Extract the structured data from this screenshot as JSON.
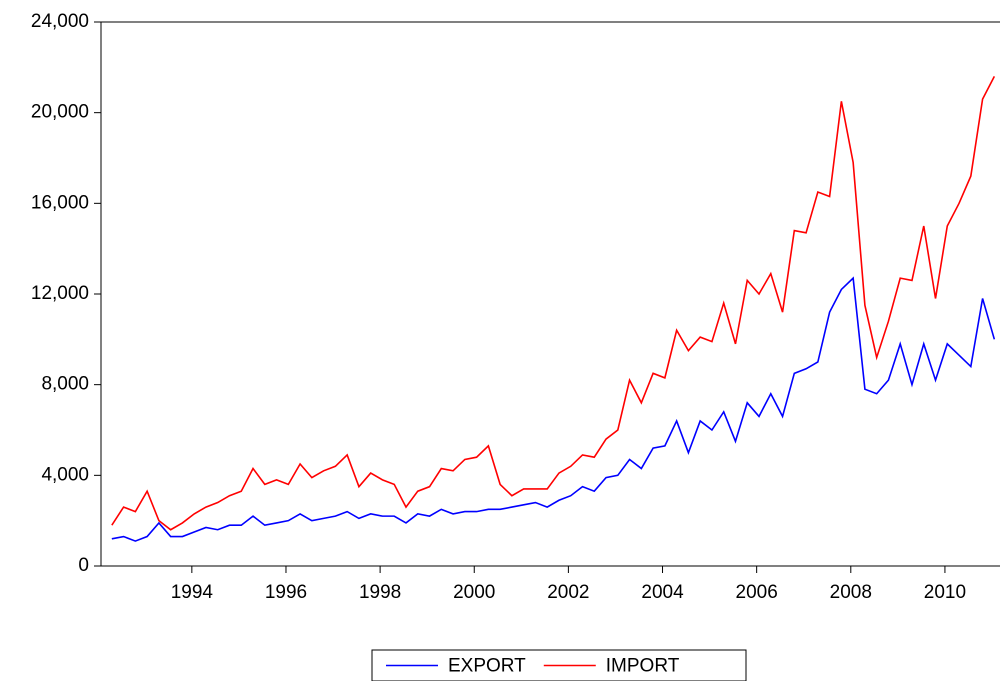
{
  "chart_data": {
    "type": "line",
    "x": [
      1992.8,
      1993.05,
      1993.3,
      1993.55,
      1993.8,
      1994.05,
      1994.3,
      1994.55,
      1994.8,
      1995.05,
      1995.3,
      1995.55,
      1995.8,
      1996.05,
      1996.3,
      1996.55,
      1996.8,
      1997.05,
      1997.3,
      1997.55,
      1997.8,
      1998.05,
      1998.3,
      1998.55,
      1998.8,
      1999.05,
      1999.3,
      1999.55,
      1999.8,
      2000.05,
      2000.3,
      2000.55,
      2000.8,
      2001.05,
      2001.3,
      2001.55,
      2001.8,
      2002.05,
      2002.3,
      2002.55,
      2002.8,
      2003.05,
      2003.3,
      2003.55,
      2003.8,
      2004.05,
      2004.3,
      2004.55,
      2004.8,
      2005.05,
      2005.3,
      2005.55,
      2005.8,
      2006.05,
      2006.3,
      2006.55,
      2006.8,
      2007.05,
      2007.3,
      2007.55,
      2007.8,
      2008.05,
      2008.3,
      2008.55,
      2008.8,
      2009.05,
      2009.3,
      2009.55,
      2009.8,
      2010.05,
      2010.3,
      2010.55,
      2010.8,
      2011.05,
      2011.3,
      2011.55
    ],
    "series": [
      {
        "name": "EXPORT",
        "color": "#0000ff",
        "values": [
          1200,
          1300,
          1100,
          1300,
          1900,
          1300,
          1300,
          1500,
          1700,
          1600,
          1800,
          1800,
          2200,
          1800,
          1900,
          2000,
          2300,
          2000,
          2100,
          2200,
          2400,
          2100,
          2300,
          2200,
          2200,
          1900,
          2300,
          2200,
          2500,
          2300,
          2400,
          2400,
          2500,
          2500,
          2600,
          2700,
          2800,
          2600,
          2900,
          3100,
          3500,
          3300,
          3900,
          4000,
          4700,
          4300,
          5200,
          5300,
          6400,
          5000,
          6400,
          6000,
          6800,
          5500,
          7200,
          6600,
          7600,
          6600,
          8500,
          8700,
          9000,
          11200,
          12200,
          12700,
          7800,
          7600,
          8200,
          9800,
          8000,
          9800,
          8200,
          9800,
          9300,
          8800,
          11800,
          10000
        ]
      },
      {
        "name": "IMPORT",
        "color": "#ff0000",
        "values": [
          1800,
          2600,
          2400,
          3300,
          2000,
          1600,
          1900,
          2300,
          2600,
          2800,
          3100,
          3300,
          4300,
          3600,
          3800,
          3600,
          4500,
          3900,
          4200,
          4400,
          4900,
          3500,
          4100,
          3800,
          3600,
          2600,
          3300,
          3500,
          4300,
          4200,
          4700,
          4800,
          5300,
          3600,
          3100,
          3400,
          3400,
          3400,
          4100,
          4400,
          4900,
          4800,
          5600,
          6000,
          8200,
          7200,
          8500,
          8300,
          10400,
          9500,
          10100,
          9900,
          11600,
          9800,
          12600,
          12000,
          12900,
          11200,
          14800,
          14700,
          16500,
          16300,
          20500,
          17800,
          11500,
          9200,
          10800,
          12700,
          12600,
          15000,
          11800,
          15000,
          16000,
          17200,
          20600,
          21600
        ]
      }
    ],
    "xlim": [
      1992.57,
      2011.67
    ],
    "xticks": [
      {
        "value": 1994.5,
        "label": "1994"
      },
      {
        "value": 1996.5,
        "label": "1996"
      },
      {
        "value": 1998.5,
        "label": "1998"
      },
      {
        "value": 2000.5,
        "label": "2000"
      },
      {
        "value": 2002.5,
        "label": "2002"
      },
      {
        "value": 2004.5,
        "label": "2004"
      },
      {
        "value": 2006.5,
        "label": "2006"
      },
      {
        "value": 2008.5,
        "label": "2008"
      },
      {
        "value": 2010.5,
        "label": "2010"
      }
    ],
    "ylim": [
      0,
      24000
    ],
    "yticks": [
      0,
      {
        "value": 4000,
        "label": "4,000"
      },
      {
        "value": 8000,
        "label": "8,000"
      },
      {
        "value": 12000,
        "label": "12,000"
      },
      {
        "value": 16000,
        "label": "16,000"
      },
      {
        "value": 20000,
        "label": "20,000"
      },
      {
        "value": 24000,
        "label": "24,000"
      }
    ],
    "legend": "bottom"
  }
}
